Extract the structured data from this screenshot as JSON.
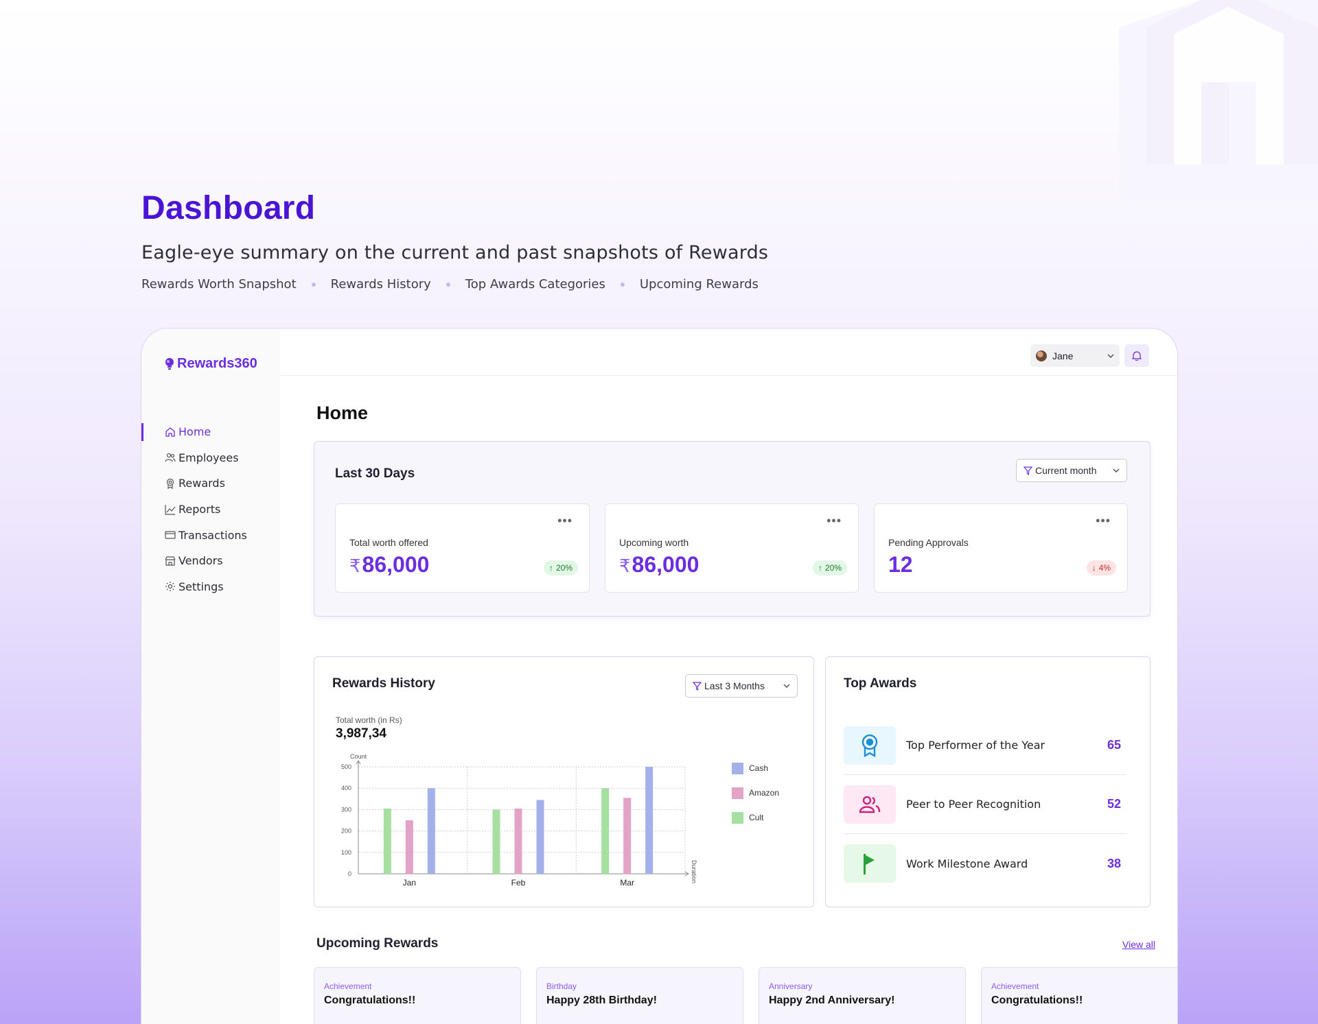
{
  "hero": {
    "title": "Dashboard",
    "subtitle": "Eagle-eye summary on the current and past snapshots of Rewards",
    "links": [
      "Rewards Worth Snapshot",
      "Rewards History",
      "Top Awards Categories",
      "Upcoming Rewards"
    ]
  },
  "app": {
    "brand": "Rewards360",
    "nav": [
      {
        "label": "Home",
        "icon": "home-icon",
        "active": true
      },
      {
        "label": "Employees",
        "icon": "users-icon"
      },
      {
        "label": "Rewards",
        "icon": "award-icon"
      },
      {
        "label": "Reports",
        "icon": "chart-icon"
      },
      {
        "label": "Transactions",
        "icon": "card-icon"
      },
      {
        "label": "Vendors",
        "icon": "store-icon"
      },
      {
        "label": "Settings",
        "icon": "gear-icon"
      }
    ],
    "user": {
      "name": "Jane"
    },
    "page_title": "Home"
  },
  "kpi": {
    "title": "Last 30 Days",
    "filter": "Current month",
    "cards": [
      {
        "label": "Total worth offered",
        "currency": "₹",
        "value": "86,000",
        "change": "20%",
        "trend": "up"
      },
      {
        "label": "Upcoming worth",
        "currency": "₹",
        "value": "86,000",
        "change": "20%",
        "trend": "up"
      },
      {
        "label": "Pending Approvals",
        "currency": "",
        "value": "12",
        "change": "4%",
        "trend": "down"
      }
    ]
  },
  "history": {
    "title": "Rewards History",
    "filter": "Last 3 Months",
    "total_label": "Total worth (in Rs)",
    "total_value": "3,987,34"
  },
  "chart_data": {
    "type": "bar",
    "ylabel": "Count",
    "xlabel": "Duration",
    "ylim": [
      0,
      500
    ],
    "yticks": [
      0,
      100,
      200,
      300,
      400,
      500
    ],
    "categories": [
      "Jan",
      "Feb",
      "Mar"
    ],
    "series": [
      {
        "name": "Cult",
        "color": "#a6e0a0",
        "values": [
          305,
          300,
          400
        ]
      },
      {
        "name": "Amazon",
        "color": "#e3a3c7",
        "values": [
          250,
          305,
          355
        ]
      },
      {
        "name": "Cash",
        "color": "#a3b0ea",
        "values": [
          400,
          345,
          500
        ]
      }
    ],
    "legend_order": [
      "Cash",
      "Amazon",
      "Cult"
    ],
    "legend": "right",
    "grid": true
  },
  "top_awards": {
    "title": "Top Awards",
    "items": [
      {
        "name": "Top Performer of the Year",
        "count": "65",
        "icon": "medal-icon",
        "bg": "#e8f6fd",
        "fg": "#1b8fd1"
      },
      {
        "name": "Peer to Peer Recognition",
        "count": "52",
        "icon": "people-icon",
        "bg": "#fde8f3",
        "fg": "#c9237f"
      },
      {
        "name": "Work Milestone Award",
        "count": "38",
        "icon": "flag-icon",
        "bg": "#e6f8e8",
        "fg": "#2aa13b"
      }
    ]
  },
  "upcoming": {
    "title": "Upcoming Rewards",
    "view_all": "View all",
    "cards": [
      {
        "category": "Achievement",
        "message": "Congratulations!!"
      },
      {
        "category": "Birthday",
        "message": "Happy 28th Birthday!"
      },
      {
        "category": "Anniversary",
        "message": "Happy 2nd Anniversary!"
      },
      {
        "category": "Achievement",
        "message": "Congratulations!!"
      }
    ]
  }
}
